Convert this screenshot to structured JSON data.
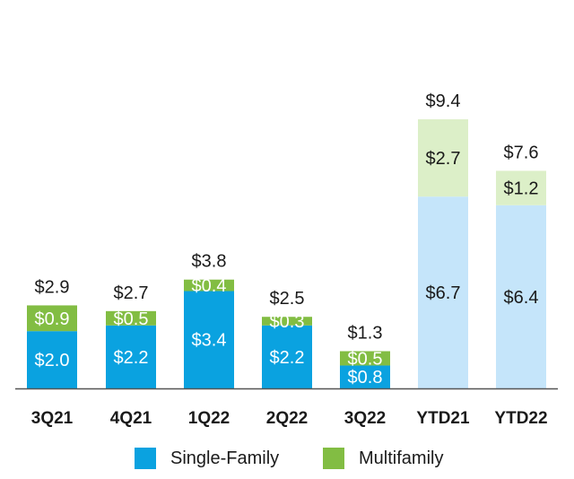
{
  "chart_data": {
    "type": "bar",
    "stacked": true,
    "categories": [
      "3Q21",
      "4Q21",
      "1Q22",
      "2Q22",
      "3Q22",
      "YTD21",
      "YTD22"
    ],
    "series": [
      {
        "name": "Single-Family",
        "values": [
          2.0,
          2.2,
          3.4,
          2.2,
          0.8,
          6.7,
          6.4
        ],
        "labels": [
          "$2.0",
          "$2.2",
          "$3.4",
          "$2.2",
          "$0.8",
          "$6.7",
          "$6.4"
        ]
      },
      {
        "name": "Multifamily",
        "values": [
          0.9,
          0.5,
          0.4,
          0.3,
          0.5,
          2.7,
          1.2
        ],
        "labels": [
          "$0.9",
          "$0.5",
          "$0.4",
          "$0.3",
          "$0.5",
          "$2.7",
          "$1.2"
        ]
      }
    ],
    "totals": [
      2.9,
      2.7,
      3.8,
      2.5,
      1.3,
      9.4,
      7.6
    ],
    "total_labels": [
      "$2.9",
      "$2.7",
      "$3.8",
      "$2.5",
      "$1.3",
      "$9.4",
      "$7.6"
    ],
    "ylim": [
      0,
      9.4
    ],
    "grid": false,
    "legend_position": "bottom",
    "colors": {
      "single_family": "#0aa2e0",
      "multifamily": "#82bd43",
      "single_family_ytd": "#c5e5fa",
      "multifamily_ytd": "#dcefc8"
    }
  },
  "legend": {
    "items": [
      {
        "label": "Single-Family",
        "color": "#0aa2e0"
      },
      {
        "label": "Multifamily",
        "color": "#82bd43"
      }
    ]
  }
}
